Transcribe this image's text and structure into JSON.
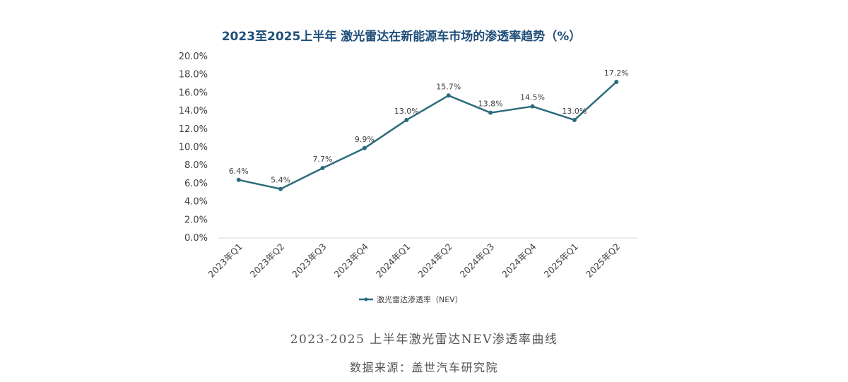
{
  "chart_data": {
    "type": "line",
    "title": "2023至2025上半年 激光雷达在新能源车市场的渗透率趋势（%）",
    "categories": [
      "2023年Q1",
      "2023年Q2",
      "2023年Q3",
      "2023年Q4",
      "2024年Q1",
      "2024年Q2",
      "2024年Q3",
      "2024年Q4",
      "2025年Q1",
      "2025年Q2"
    ],
    "series": [
      {
        "name": "激光雷达渗透率（NEV）",
        "values": [
          6.4,
          5.4,
          7.7,
          9.9,
          13.0,
          15.7,
          13.8,
          14.5,
          13.0,
          17.2
        ],
        "data_labels": [
          "6.4%",
          "5.4%",
          "7.7%",
          "9.9%",
          "13.0%",
          "15.7%",
          "13.8%",
          "14.5%",
          "13.0%",
          "17.2%"
        ],
        "color": "#2b6b7c"
      }
    ],
    "y_ticks": [
      "0.0%",
      "2.0%",
      "4.0%",
      "6.0%",
      "8.0%",
      "10.0%",
      "12.0%",
      "14.0%",
      "16.0%",
      "18.0%",
      "20.0%"
    ],
    "ylim": [
      0,
      20
    ],
    "grid": false,
    "legend_position": "bottom-center",
    "xlabel": "",
    "ylabel": ""
  },
  "caption": "2023-2025 上半年激光雷达NEV渗透率曲线",
  "source": "数据来源：盖世汽车研究院",
  "colors": {
    "title": "#1f4e79",
    "axis_text": "#404040",
    "axis_line": "#d9d9d9",
    "caption": "#555555"
  }
}
